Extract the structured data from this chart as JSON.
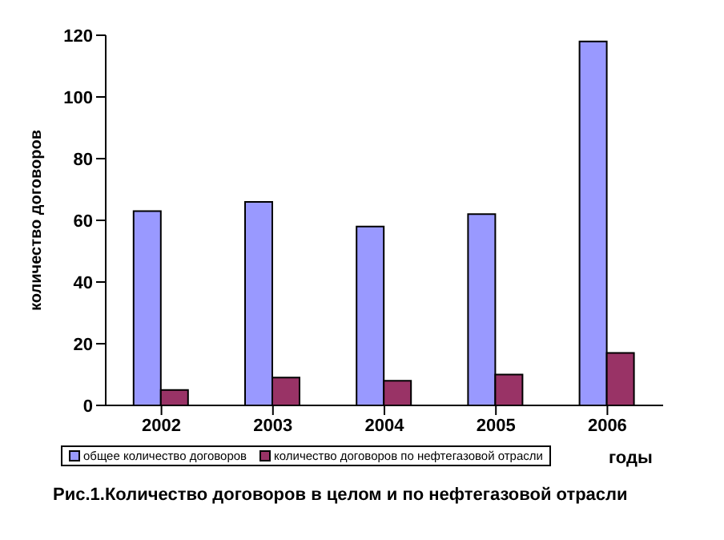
{
  "chart_data": {
    "type": "bar",
    "title": "Рис.1.Количество договоров в целом и по нефтегазовой отрасли",
    "xlabel": "годы",
    "ylabel": "количество договоров",
    "categories": [
      "2002",
      "2003",
      "2004",
      "2005",
      "2006"
    ],
    "series": [
      {
        "name": "общее количество договоров",
        "color": "#9999ff",
        "values": [
          63,
          66,
          58,
          62,
          118
        ]
      },
      {
        "name": "количество договоров по нефтегазовой отрасли",
        "color": "#993366",
        "values": [
          5,
          9,
          8,
          10,
          17
        ]
      }
    ],
    "ylim": [
      0,
      120
    ],
    "yticks": [
      0,
      20,
      40,
      60,
      80,
      100,
      120
    ],
    "grid": false,
    "legend": "bottom"
  }
}
